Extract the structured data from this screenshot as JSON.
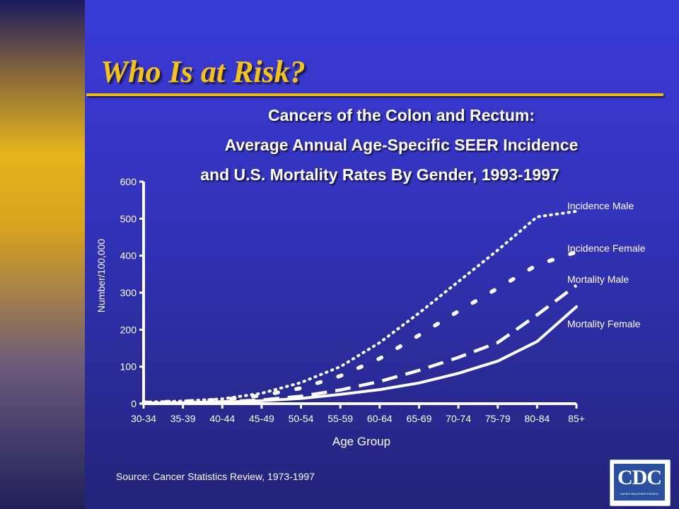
{
  "slide": {
    "title": "Who Is at Risk?",
    "source": "Source:  Cancer Statistics Review, 1973-1997",
    "accent_color": "#f4c21a",
    "logo": {
      "icon": "cdc-logo-icon",
      "mark": "CDC",
      "tagline": "SAFER·HEALTHIER·PEOPLE"
    }
  },
  "chart_data": {
    "type": "line",
    "title_lines": [
      "Cancers of the Colon and Rectum:",
      "Average Annual Age-Specific SEER Incidence",
      "and U.S. Mortality Rates By Gender, 1993-1997"
    ],
    "xlabel": "Age Group",
    "ylabel": "Number/100,000",
    "ylim": [
      0,
      600
    ],
    "yticks": [
      0,
      100,
      200,
      300,
      400,
      500,
      600
    ],
    "categories": [
      "30-34",
      "35-39",
      "40-44",
      "45-49",
      "50-54",
      "55-59",
      "60-64",
      "65-69",
      "70-74",
      "75-79",
      "80-84",
      "85+"
    ],
    "grid": false,
    "legend": "direct labels at right",
    "series": [
      {
        "name": "Incidence Male",
        "style": "dotted",
        "color": "#ffffff",
        "values": [
          4,
          7,
          13,
          28,
          57,
          100,
          165,
          245,
          330,
          415,
          505,
          520
        ]
      },
      {
        "name": "Incidence Female",
        "style": "dash-dot",
        "color": "#ffffff",
        "values": [
          3,
          6,
          11,
          22,
          42,
          75,
          122,
          185,
          250,
          312,
          375,
          410
        ]
      },
      {
        "name": "Mortality Male",
        "style": "dashed",
        "color": "#ffffff",
        "values": [
          1,
          2,
          5,
          10,
          20,
          37,
          60,
          90,
          125,
          165,
          240,
          320
        ]
      },
      {
        "name": "Mortality Female",
        "style": "solid",
        "color": "#ffffff",
        "values": [
          1,
          2,
          4,
          8,
          14,
          25,
          38,
          56,
          82,
          115,
          168,
          262
        ]
      }
    ]
  }
}
